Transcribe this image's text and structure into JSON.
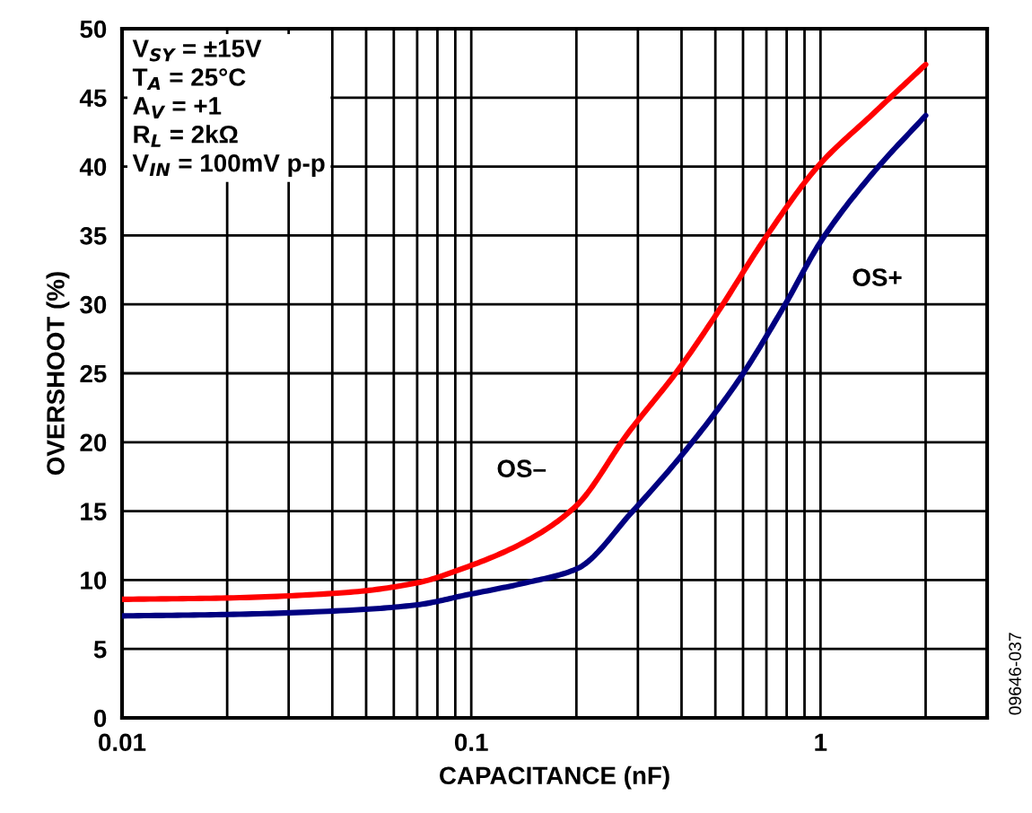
{
  "chart_data": {
    "type": "line",
    "xlabel": "CAPACITANCE (nF)",
    "ylabel": "OVERSHOOT (%)",
    "log": "x",
    "grid": true,
    "line_style": "solid",
    "marker": "none",
    "xlim": [
      0.01,
      3
    ],
    "ylim": [
      0,
      50
    ],
    "xticks": [
      0.01,
      {
        "value": 0.02,
        "label": null
      },
      {
        "value": 0.03,
        "label": null
      },
      {
        "value": 0.04,
        "label": null
      },
      {
        "value": 0.05,
        "label": null
      },
      {
        "value": 0.06,
        "label": null
      },
      {
        "value": 0.07,
        "label": null
      },
      {
        "value": 0.08,
        "label": null
      },
      {
        "value": 0.09,
        "label": null
      },
      0.1,
      {
        "value": 0.2,
        "label": null
      },
      {
        "value": 0.3,
        "label": null
      },
      {
        "value": 0.4,
        "label": null
      },
      {
        "value": 0.5,
        "label": null
      },
      {
        "value": 0.6,
        "label": null
      },
      {
        "value": 0.7,
        "label": null
      },
      {
        "value": 0.8,
        "label": null
      },
      {
        "value": 0.9,
        "label": null
      },
      1,
      {
        "value": 2,
        "label": null
      }
    ],
    "yticks": [
      0,
      5,
      10,
      15,
      20,
      25,
      30,
      35,
      40,
      45,
      50
    ],
    "series": [
      {
        "name": "OS–",
        "color": "#ff0000",
        "x": [
          0.01,
          0.02,
          0.044,
          0.07,
          0.096,
          0.143,
          0.2,
          0.28,
          0.39,
          0.51,
          0.69,
          0.99,
          1.41,
          2.0
        ],
        "values": [
          8.6,
          8.7,
          9.1,
          9.8,
          10.9,
          12.8,
          15.4,
          20.6,
          25.2,
          29.5,
          34.7,
          40.1,
          43.8,
          47.4
        ]
      },
      {
        "name": "OS+",
        "color": "#000080",
        "x": [
          0.01,
          0.02,
          0.044,
          0.07,
          0.096,
          0.143,
          0.2,
          0.29,
          0.42,
          0.59,
          0.78,
          1.01,
          1.41,
          2.0
        ],
        "values": [
          7.4,
          7.5,
          7.8,
          8.2,
          8.9,
          9.8,
          10.8,
          15.0,
          19.7,
          24.7,
          29.7,
          34.7,
          39.5,
          43.7
        ]
      }
    ],
    "annotations": [
      "V$_{SY}$ = ±15V\nT$_{A}$ = 25°C\nA$_{V}$ = +1\nR$_{L}$ = 2kΩ\nV$_{IN}$ = 100mV p-p",
      "09646-037"
    ]
  }
}
